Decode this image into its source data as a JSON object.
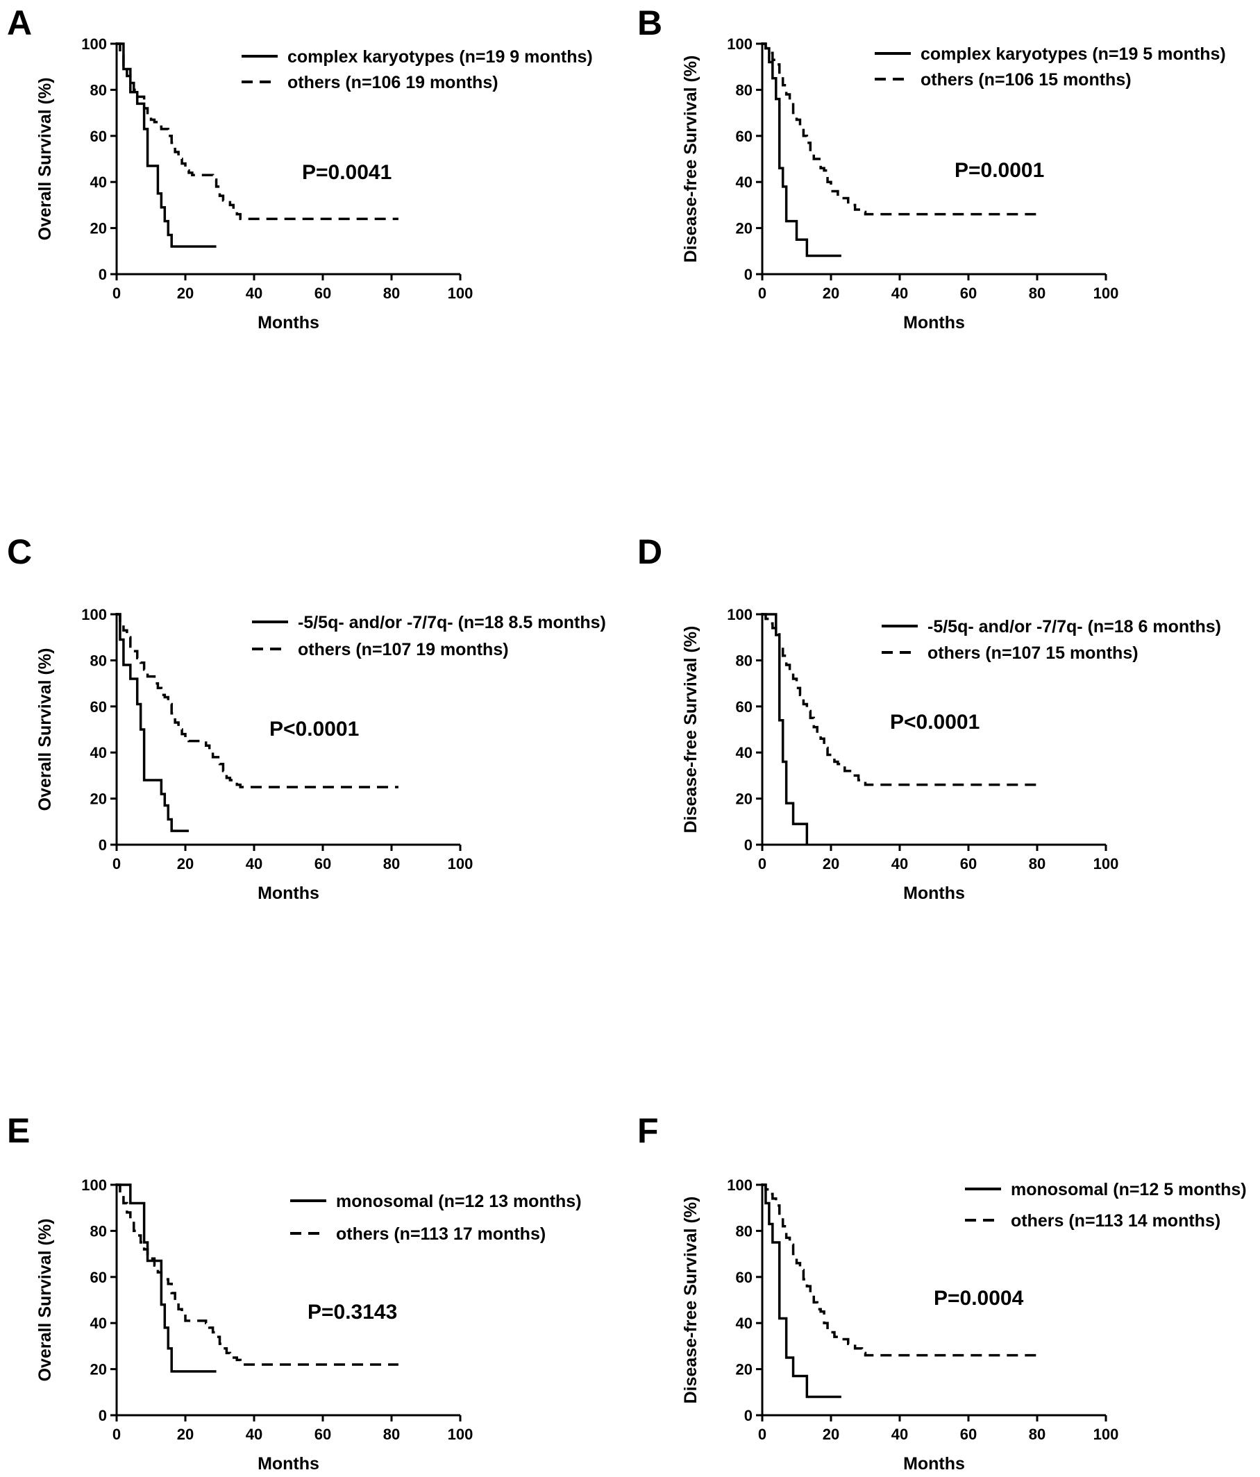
{
  "figure": {
    "background": "#ffffff",
    "ink": "#000000"
  },
  "chart_data": [
    {
      "panel": "A",
      "type": "line",
      "xlabel": "Months",
      "ylabel": "Overall Survival (%)",
      "xlim": [
        0,
        100
      ],
      "ylim": [
        0,
        100
      ],
      "xticks": [
        0,
        20,
        40,
        60,
        80,
        100
      ],
      "yticks": [
        0,
        20,
        40,
        60,
        80,
        100
      ],
      "grid": false,
      "legend_position": "top-right",
      "annotation": "P=0.0041",
      "series": [
        {
          "name": "complex karyotypes (n=19 9 months)",
          "style": "solid",
          "x": [
            0,
            2,
            4,
            6,
            8,
            9,
            12,
            13,
            14,
            15,
            16,
            29
          ],
          "y": [
            100,
            89,
            79,
            74,
            63,
            47,
            35,
            29,
            23,
            17,
            12,
            12
          ]
        },
        {
          "name": "others (n=106 19 months)",
          "style": "dashed",
          "x": [
            0,
            1,
            2,
            3,
            4,
            5,
            6,
            8,
            9,
            10,
            11,
            12,
            13,
            15,
            16,
            17,
            18,
            19,
            20,
            21,
            22,
            28,
            29,
            30,
            31,
            33,
            34,
            35,
            36,
            82
          ],
          "y": [
            100,
            95,
            90,
            86,
            83,
            80,
            77,
            72,
            69,
            67,
            66,
            64,
            63,
            60,
            57,
            53,
            50,
            48,
            45,
            44,
            43,
            41,
            38,
            34,
            32,
            30,
            28,
            26,
            24,
            24
          ]
        }
      ]
    },
    {
      "panel": "B",
      "type": "line",
      "xlabel": "Months",
      "ylabel": "Disease-free Survival (%)",
      "xlim": [
        0,
        100
      ],
      "ylim": [
        0,
        100
      ],
      "xticks": [
        0,
        20,
        40,
        60,
        80,
        100
      ],
      "yticks": [
        0,
        20,
        40,
        60,
        80,
        100
      ],
      "grid": false,
      "legend_position": "top-right",
      "annotation": "P=0.0001",
      "series": [
        {
          "name": "complex karyotypes (n=19 5 months)",
          "style": "solid",
          "x": [
            0,
            1,
            2,
            3,
            4,
            5,
            6,
            7,
            10,
            13,
            23
          ],
          "y": [
            100,
            98,
            92,
            85,
            76,
            46,
            38,
            23,
            15,
            8,
            8
          ]
        },
        {
          "name": "others (n=106 15 months)",
          "style": "dashed",
          "x": [
            0,
            1,
            2,
            3,
            4,
            5,
            6,
            7,
            8,
            9,
            10,
            11,
            12,
            13,
            14,
            15,
            17,
            18,
            19,
            20,
            22,
            23,
            25,
            27,
            29,
            30,
            81
          ],
          "y": [
            100,
            98,
            96,
            93,
            91,
            86,
            82,
            78,
            75,
            70,
            67,
            64,
            60,
            57,
            53,
            50,
            46,
            45,
            40,
            36,
            34,
            33,
            30,
            28,
            27,
            26,
            26
          ]
        }
      ]
    },
    {
      "panel": "C",
      "type": "line",
      "xlabel": "Months",
      "ylabel": "Overall Survival (%)",
      "xlim": [
        0,
        100
      ],
      "ylim": [
        0,
        100
      ],
      "xticks": [
        0,
        20,
        40,
        60,
        80,
        100
      ],
      "yticks": [
        0,
        20,
        40,
        60,
        80,
        100
      ],
      "grid": false,
      "legend_position": "top-right",
      "annotation": "P<0.0001",
      "series": [
        {
          "name": "-5/5q- and/or -7/7q- (n=18 8.5 months)",
          "style": "solid",
          "x": [
            0,
            1,
            2,
            4,
            6,
            7,
            8,
            9,
            13,
            14,
            15,
            16,
            21
          ],
          "y": [
            100,
            89,
            78,
            72,
            61,
            50,
            28,
            28,
            22,
            17,
            11,
            6,
            6
          ]
        },
        {
          "name": "others (n=107 19 months)",
          "style": "dashed",
          "x": [
            0,
            1,
            2,
            3,
            4,
            5,
            6,
            7,
            8,
            9,
            11,
            12,
            13,
            14,
            15,
            16,
            17,
            18,
            19,
            20,
            21,
            26,
            27,
            28,
            30,
            31,
            32,
            33,
            35,
            36,
            82
          ],
          "y": [
            100,
            96,
            93,
            90,
            86,
            84,
            81,
            79,
            76,
            73,
            70,
            68,
            65,
            64,
            61,
            57,
            53,
            50,
            48,
            46,
            45,
            43,
            41,
            38,
            35,
            32,
            29,
            28,
            26,
            25,
            25
          ]
        }
      ]
    },
    {
      "panel": "D",
      "type": "line",
      "xlabel": "Months",
      "ylabel": "Disease-free Survival (%)",
      "xlim": [
        0,
        100
      ],
      "ylim": [
        0,
        100
      ],
      "xticks": [
        0,
        20,
        40,
        60,
        80,
        100
      ],
      "yticks": [
        0,
        20,
        40,
        60,
        80,
        100
      ],
      "grid": false,
      "legend_position": "top-right",
      "annotation": "P<0.0001",
      "series": [
        {
          "name": "-5/5q- and/or -7/7q- (n=18 6 months)",
          "style": "solid",
          "x": [
            0,
            4,
            5,
            6,
            7,
            9,
            13
          ],
          "y": [
            100,
            91,
            54,
            36,
            18,
            9,
            0
          ]
        },
        {
          "name": "others (n=107 15 months)",
          "style": "dashed",
          "x": [
            0,
            1,
            2,
            3,
            4,
            5,
            6,
            7,
            8,
            9,
            10,
            11,
            12,
            13,
            14,
            15,
            16,
            17,
            18,
            19,
            21,
            22,
            24,
            26,
            28,
            30,
            81
          ],
          "y": [
            100,
            98,
            96,
            94,
            92,
            87,
            82,
            78,
            75,
            72,
            68,
            65,
            61,
            58,
            55,
            51,
            48,
            46,
            42,
            39,
            36,
            35,
            32,
            30,
            28,
            26,
            26
          ]
        }
      ]
    },
    {
      "panel": "E",
      "type": "line",
      "xlabel": "Months",
      "ylabel": "Overall Survival (%)",
      "xlim": [
        0,
        100
      ],
      "ylim": [
        0,
        100
      ],
      "xticks": [
        0,
        20,
        40,
        60,
        80,
        100
      ],
      "yticks": [
        0,
        20,
        40,
        60,
        80,
        100
      ],
      "grid": false,
      "legend_position": "top-right",
      "annotation": "P=0.3143",
      "series": [
        {
          "name": "monosomal (n=12 13 months)",
          "style": "solid",
          "x": [
            0,
            4,
            8,
            9,
            10,
            13,
            14,
            15,
            16,
            29
          ],
          "y": [
            100,
            92,
            75,
            67,
            67,
            48,
            38,
            29,
            19,
            19
          ]
        },
        {
          "name": "others (n=113 17 months)",
          "style": "dashed",
          "x": [
            0,
            1,
            2,
            3,
            4,
            5,
            6,
            7,
            8,
            9,
            10,
            11,
            12,
            13,
            15,
            16,
            17,
            18,
            19,
            20,
            26,
            27,
            28,
            29,
            30,
            31,
            32,
            33,
            35,
            36,
            82
          ],
          "y": [
            100,
            96,
            92,
            88,
            84,
            80,
            78,
            75,
            72,
            70,
            68,
            65,
            62,
            59,
            57,
            53,
            50,
            46,
            44,
            41,
            40,
            38,
            36,
            34,
            31,
            29,
            27,
            25,
            24,
            22,
            22
          ]
        }
      ]
    },
    {
      "panel": "F",
      "type": "line",
      "xlabel": "Months",
      "ylabel": "Disease-free Survival (%)",
      "xlim": [
        0,
        100
      ],
      "ylim": [
        0,
        100
      ],
      "xticks": [
        0,
        20,
        40,
        60,
        80,
        100
      ],
      "yticks": [
        0,
        20,
        40,
        60,
        80,
        100
      ],
      "grid": false,
      "legend_position": "top-right",
      "annotation": "P=0.0004",
      "series": [
        {
          "name": "monosomal (n=12 5 months)",
          "style": "solid",
          "x": [
            0,
            1,
            2,
            3,
            4,
            5,
            6,
            7,
            9,
            10,
            13,
            23
          ],
          "y": [
            100,
            92,
            83,
            75,
            75,
            42,
            42,
            25,
            17,
            17,
            8,
            8
          ]
        },
        {
          "name": "others (n=113 14 months)",
          "style": "dashed",
          "x": [
            0,
            1,
            2,
            3,
            4,
            5,
            6,
            7,
            8,
            9,
            10,
            11,
            12,
            13,
            14,
            15,
            16,
            17,
            18,
            19,
            21,
            23,
            25,
            27,
            29,
            30,
            81
          ],
          "y": [
            100,
            98,
            96,
            94,
            91,
            86,
            82,
            77,
            74,
            70,
            66,
            63,
            59,
            56,
            52,
            49,
            46,
            45,
            40,
            36,
            34,
            33,
            31,
            29,
            27,
            26,
            26
          ]
        }
      ]
    }
  ]
}
